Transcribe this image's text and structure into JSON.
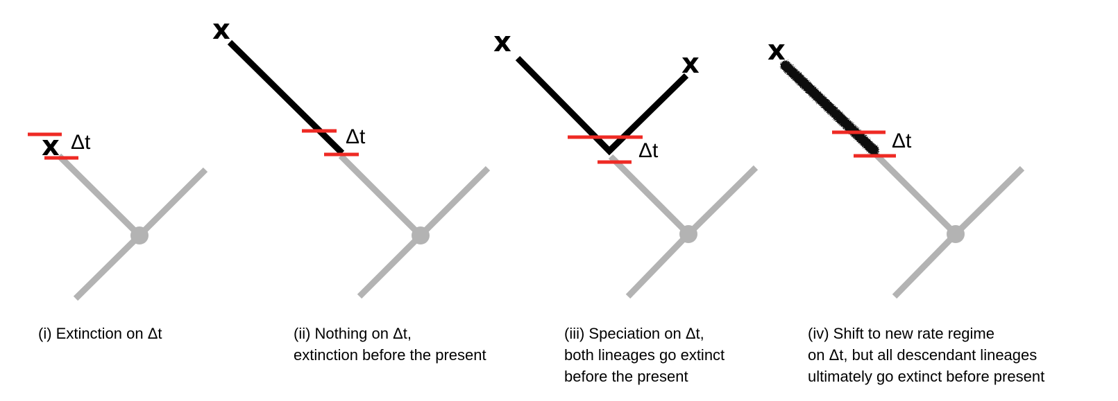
{
  "labels": {
    "delta_t": "Δt",
    "extinct_mark": "x"
  },
  "colors": {
    "background_branch": "#b3b3b3",
    "lineage": "#000000",
    "interval_marker": "#ee2a24"
  },
  "panels": [
    {
      "id": "i",
      "caption_lines": [
        "(i) Extinction on Δt"
      ]
    },
    {
      "id": "ii",
      "caption_lines": [
        "(ii) Nothing on Δt,",
        "extinction before the present"
      ]
    },
    {
      "id": "iii",
      "caption_lines": [
        "(iii) Speciation on Δt,",
        "both lineages go extinct",
        "before the present"
      ]
    },
    {
      "id": "iv",
      "caption_lines": [
        "(iv) Shift to new rate regime",
        "on Δt, but all descendant lineages",
        "ultimately go extinct before present"
      ]
    }
  ]
}
